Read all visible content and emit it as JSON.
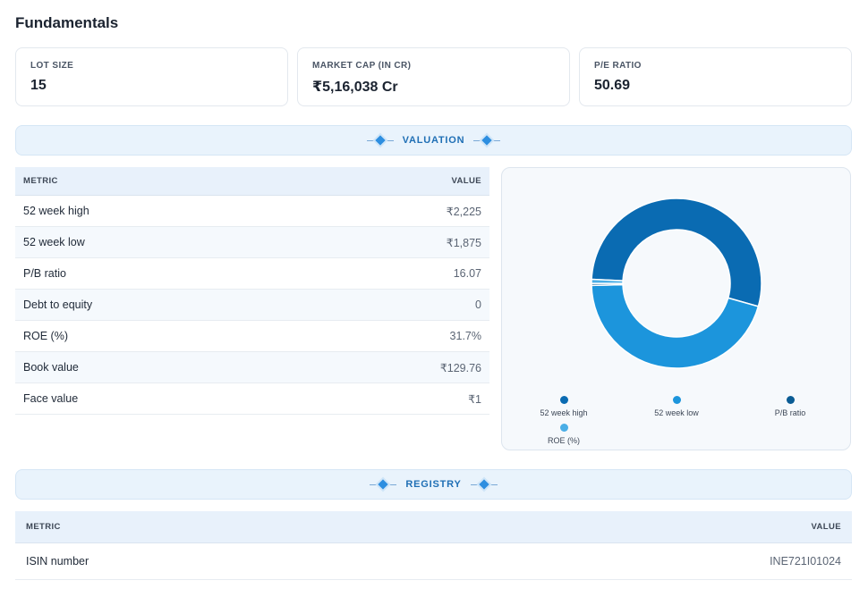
{
  "section_title": "Fundamentals",
  "cards": [
    {
      "label": "LOT SIZE",
      "value": "15"
    },
    {
      "label": "MARKET CAP (IN CR)",
      "value": "₹5,16,038 Cr"
    },
    {
      "label": "P/E RATIO",
      "value": "50.69"
    }
  ],
  "valuation": {
    "band_label": "VALUATION",
    "columns": [
      "METRIC",
      "VALUE"
    ],
    "rows": [
      {
        "metric": "52 week high",
        "value": "₹2,225"
      },
      {
        "metric": "52 week low",
        "value": "₹1,875"
      },
      {
        "metric": "P/B ratio",
        "value": "16.07"
      },
      {
        "metric": "Debt to equity",
        "value": "0"
      },
      {
        "metric": "ROE (%)",
        "value": "31.7%"
      },
      {
        "metric": "Book value",
        "value": "₹129.76"
      },
      {
        "metric": "Face value",
        "value": "₹1"
      }
    ]
  },
  "chart_data": {
    "type": "pie",
    "title": "",
    "categories": [
      "52 week high",
      "52 week low",
      "P/B ratio",
      "ROE (%)"
    ],
    "values": [
      2225,
      1875,
      16.07,
      31.7
    ],
    "colors": [
      "#0a6bb2",
      "#1c95dc",
      "#0a5c94",
      "#4aaee6"
    ],
    "legend_position": "bottom"
  },
  "registry": {
    "band_label": "REGISTRY",
    "columns": [
      "METRIC",
      "VALUE"
    ],
    "rows": [
      {
        "metric": "ISIN number",
        "value": "INE721I01024"
      }
    ]
  }
}
